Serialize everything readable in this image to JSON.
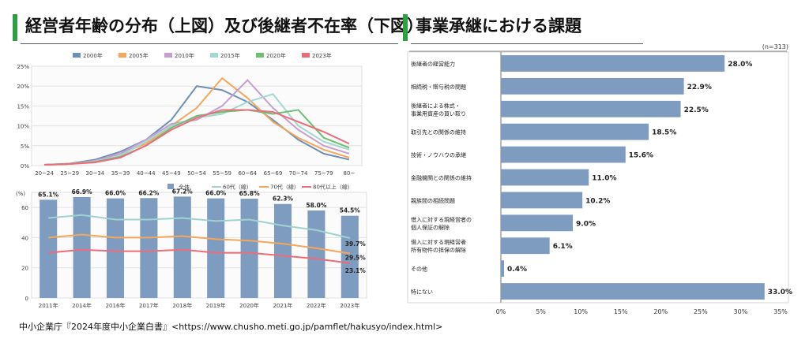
{
  "left_title": "経営者年齢の分布（上図）及び後継者不在率（下図）",
  "right_title": "事業承継における課題",
  "footer": "中小企業庁『2024年度中小企業白書』<https://www.chusho.meti.go.jp/pamflet/hakusyo/index.html>",
  "chart_data": [
    {
      "type": "line",
      "categories": [
        "20~24",
        "25~29",
        "30~34",
        "35~39",
        "40~44",
        "45~49",
        "50~54",
        "55~59",
        "60~64",
        "65~69",
        "70~74",
        "75~79",
        "80~"
      ],
      "y_ticks": [
        "0%",
        "5%",
        "10%",
        "15%",
        "20%",
        "25%"
      ],
      "ylim": [
        0,
        25
      ],
      "legend_position": "top",
      "grid": true,
      "series": [
        {
          "name": "2000年",
          "color": "#6e8fb5",
          "values": [
            0.2,
            0.5,
            1.5,
            3.5,
            6.5,
            11.5,
            20,
            19,
            16,
            11.5,
            6.5,
            3,
            1.5
          ]
        },
        {
          "name": "2005年",
          "color": "#f5a65b",
          "values": [
            0.2,
            0.4,
            1.2,
            3.0,
            5.5,
            10,
            14.5,
            22,
            17,
            11,
            7,
            4,
            2
          ]
        },
        {
          "name": "2010年",
          "color": "#c79fcf",
          "values": [
            0.2,
            0.4,
            1.2,
            3.0,
            6.5,
            10.5,
            11.5,
            15,
            21.5,
            14.5,
            9,
            5,
            3
          ]
        },
        {
          "name": "2015年",
          "color": "#a3d8d2",
          "values": [
            0.2,
            0.4,
            1.0,
            2.5,
            6,
            10,
            12,
            13,
            16,
            18,
            10,
            6,
            4
          ]
        },
        {
          "name": "2020年",
          "color": "#6cbf73",
          "values": [
            0.2,
            0.4,
            0.9,
            2.2,
            5,
            9.5,
            12.5,
            13.5,
            14,
            13,
            14,
            7,
            4.5
          ]
        },
        {
          "name": "2023年",
          "color": "#ee6b78",
          "values": [
            0.2,
            0.4,
            0.8,
            2.0,
            5,
            9,
            12,
            14,
            14,
            13.5,
            11,
            8.5,
            5.5
          ]
        }
      ]
    },
    {
      "type": "bar",
      "y_axis_label": "(%)",
      "categories": [
        "2011年",
        "2014年",
        "2016年",
        "2017年",
        "2018年",
        "2019年",
        "2020年",
        "2021年",
        "2022年",
        "2023年"
      ],
      "y_ticks": [
        "0",
        "20",
        "40",
        "60"
      ],
      "ylim": [
        0,
        70
      ],
      "legend_position": "top",
      "series": [
        {
          "name": "全体",
          "color": "#7e9cc0",
          "type": "bar",
          "values": [
            65.1,
            66.9,
            66.0,
            66.2,
            67.2,
            66.0,
            65.8,
            62.3,
            58.0,
            54.5
          ],
          "labels": [
            "65.1%",
            "66.9%",
            "66.0%",
            "66.2%",
            "67.2%",
            "66.0%",
            "65.8%",
            "62.3%",
            "58.0%",
            "54.5%"
          ]
        },
        {
          "name": "60代（線）",
          "color": "#9fd3cf",
          "type": "line",
          "values": [
            53,
            55,
            52,
            52,
            53,
            51,
            52,
            48,
            45,
            39.7
          ]
        },
        {
          "name": "70代（線）",
          "color": "#f5a65b",
          "type": "line",
          "values": [
            40,
            42,
            40,
            40,
            41,
            39,
            38,
            36,
            33,
            29.5
          ]
        },
        {
          "name": "80代以上（線）",
          "color": "#ee6b78",
          "type": "line",
          "values": [
            30,
            32,
            31,
            31,
            32,
            30,
            30,
            28,
            26,
            23.1
          ]
        }
      ],
      "end_labels": [
        "39.7%",
        "29.5%",
        "23.1%"
      ]
    },
    {
      "type": "bar",
      "orientation": "horizontal",
      "note": "(n=313)",
      "x_ticks": [
        "0%",
        "5%",
        "10%",
        "15%",
        "20%",
        "25%",
        "30%",
        "35%"
      ],
      "xlim": [
        0,
        35
      ],
      "color": "#7e9cc0",
      "categories": [
        "後継者の経営能力",
        "相続税・贈与税の問題",
        "後継者による株式・\n事業用資産の買い取り",
        "取引先との関係の維持",
        "技術・ノウハウの承継",
        "金融機関との関係の維持",
        "親族間の相続問題",
        "借入に対する現経営者の\n個人保証の解除",
        "借入に対する現経営者\n所有物件の担保の解除",
        "その他",
        "特にない"
      ],
      "values": [
        28.0,
        22.9,
        22.5,
        18.5,
        15.6,
        11.0,
        10.2,
        9.0,
        6.1,
        0.4,
        33.0
      ],
      "labels": [
        "28.0%",
        "22.9%",
        "22.5%",
        "18.5%",
        "15.6%",
        "11.0%",
        "10.2%",
        "9.0%",
        "6.1%",
        "0.4%",
        "33.0%"
      ]
    }
  ]
}
